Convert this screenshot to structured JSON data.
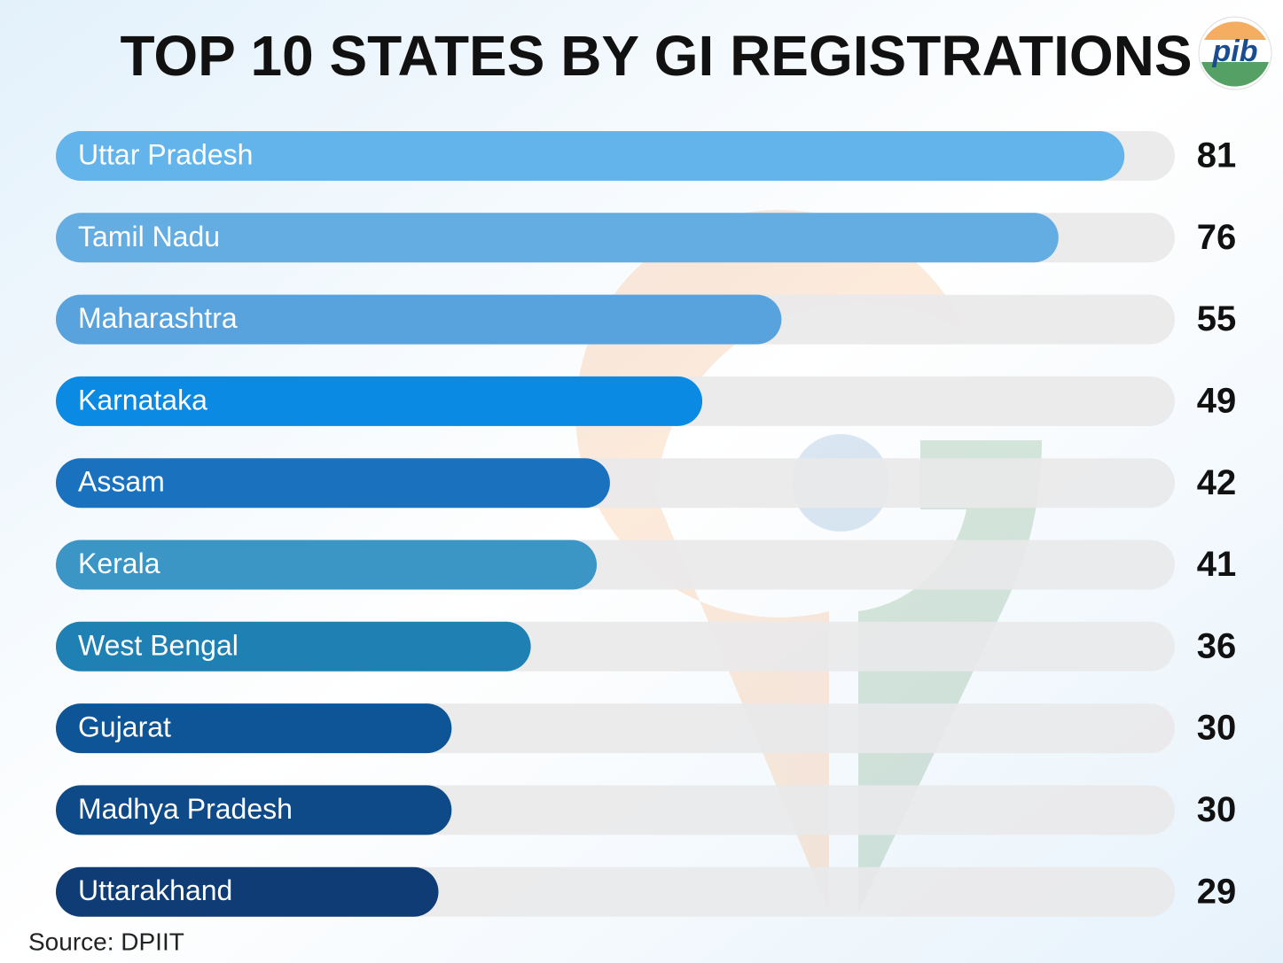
{
  "chart_data": {
    "type": "bar",
    "orientation": "horizontal",
    "title": "TOP 10 STATES BY GI REGISTRATIONS",
    "categories": [
      "Uttar Pradesh",
      "Tamil Nadu",
      "Maharashtra",
      "Karnataka",
      "Assam",
      "Kerala",
      "West Bengal",
      "Gujarat",
      "Madhya Pradesh",
      "Uttarakhand"
    ],
    "values": [
      81,
      76,
      55,
      49,
      42,
      41,
      36,
      30,
      30,
      29
    ],
    "colors": [
      "#63b4ea",
      "#63ade3",
      "#58a3dd",
      "#0a8ae2",
      "#1a72bf",
      "#3b96c6",
      "#1f80b4",
      "#0d5597",
      "#0e4a88",
      "#0f3c74"
    ],
    "source": "Source: DPIIT",
    "logo": "pib"
  }
}
